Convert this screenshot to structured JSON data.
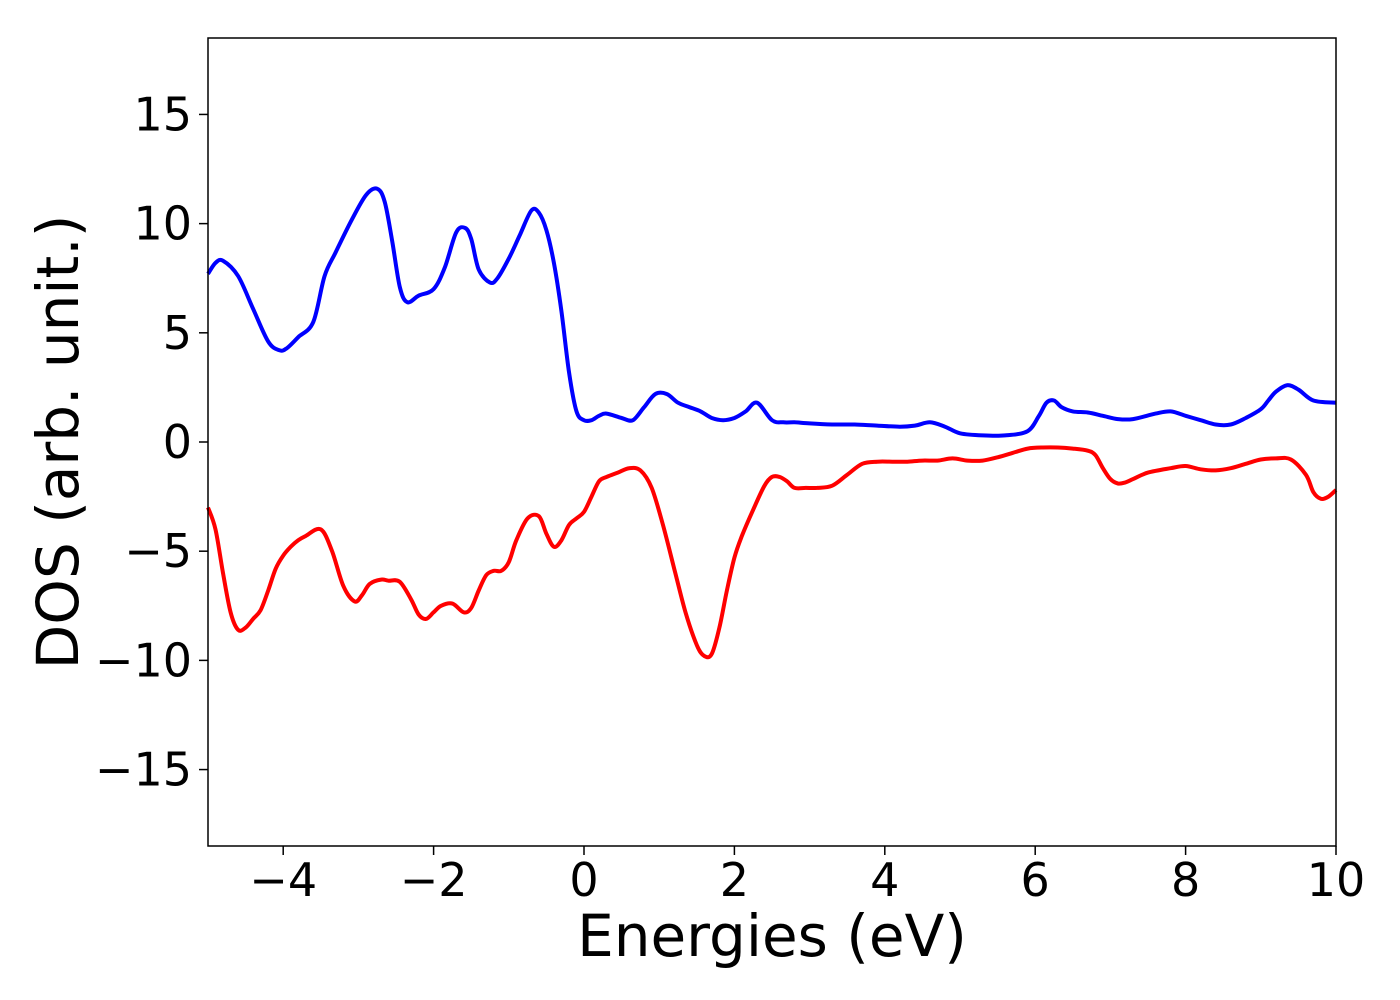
{
  "chart_data": {
    "type": "line",
    "title": "",
    "xlabel": "Energies (eV)",
    "ylabel": "DOS (arb. unit.)",
    "xlim": [
      -5,
      10
    ],
    "ylim": [
      -18.5,
      18.5
    ],
    "x_ticks": [
      -4,
      -2,
      0,
      2,
      4,
      6,
      8,
      10
    ],
    "x_tick_labels": [
      "−4",
      "−2",
      "0",
      "2",
      "4",
      "6",
      "8",
      "10"
    ],
    "y_ticks": [
      -15,
      -10,
      -5,
      0,
      5,
      10,
      15
    ],
    "y_tick_labels": [
      "−15",
      "−10",
      "−5",
      "0",
      "5",
      "10",
      "15"
    ],
    "grid": false,
    "legend": "none",
    "series": [
      {
        "color": "#0000ff",
        "x": [
          -5.0,
          -4.9,
          -4.8,
          -4.6,
          -4.4,
          -4.2,
          -4.05,
          -3.95,
          -3.8,
          -3.6,
          -3.45,
          -3.3,
          -3.1,
          -2.9,
          -2.75,
          -2.65,
          -2.55,
          -2.45,
          -2.35,
          -2.2,
          -2.0,
          -1.85,
          -1.7,
          -1.58,
          -1.5,
          -1.4,
          -1.25,
          -1.15,
          -1.0,
          -0.85,
          -0.7,
          -0.6,
          -0.5,
          -0.4,
          -0.3,
          -0.2,
          -0.1,
          0.0,
          0.1,
          0.2,
          0.3,
          0.5,
          0.65,
          0.8,
          0.95,
          1.1,
          1.25,
          1.4,
          1.55,
          1.7,
          1.85,
          2.0,
          2.15,
          2.3,
          2.5,
          2.65,
          2.8,
          3.0,
          3.3,
          3.6,
          3.9,
          4.2,
          4.4,
          4.6,
          4.8,
          5.0,
          5.3,
          5.6,
          5.9,
          6.05,
          6.15,
          6.25,
          6.35,
          6.5,
          6.7,
          6.9,
          7.1,
          7.3,
          7.6,
          7.8,
          8.0,
          8.2,
          8.4,
          8.6,
          8.8,
          9.0,
          9.1,
          9.2,
          9.35,
          9.5,
          9.7,
          10.0
        ],
        "y": [
          7.7,
          8.2,
          8.3,
          7.6,
          6.1,
          4.6,
          4.2,
          4.3,
          4.8,
          5.5,
          7.6,
          8.7,
          10.1,
          11.3,
          11.6,
          11.0,
          9.2,
          7.1,
          6.4,
          6.7,
          7.0,
          8.0,
          9.6,
          9.8,
          9.3,
          7.9,
          7.3,
          7.5,
          8.4,
          9.5,
          10.6,
          10.5,
          9.7,
          8.2,
          6.0,
          3.2,
          1.4,
          1.0,
          1.0,
          1.2,
          1.3,
          1.1,
          1.0,
          1.6,
          2.2,
          2.2,
          1.8,
          1.6,
          1.4,
          1.1,
          1.0,
          1.1,
          1.4,
          1.8,
          1.0,
          0.9,
          0.9,
          0.85,
          0.8,
          0.8,
          0.75,
          0.7,
          0.75,
          0.9,
          0.7,
          0.4,
          0.3,
          0.3,
          0.5,
          1.2,
          1.8,
          1.9,
          1.6,
          1.4,
          1.35,
          1.2,
          1.05,
          1.05,
          1.3,
          1.4,
          1.2,
          1.0,
          0.8,
          0.8,
          1.1,
          1.5,
          1.9,
          2.3,
          2.6,
          2.4,
          1.9,
          1.8
        ]
      },
      {
        "color": "#ff0000",
        "x": [
          -5.0,
          -4.9,
          -4.8,
          -4.7,
          -4.6,
          -4.5,
          -4.4,
          -4.3,
          -4.2,
          -4.1,
          -4.0,
          -3.9,
          -3.8,
          -3.7,
          -3.5,
          -3.35,
          -3.2,
          -3.05,
          -2.95,
          -2.85,
          -2.7,
          -2.6,
          -2.45,
          -2.3,
          -2.2,
          -2.1,
          -2.0,
          -1.9,
          -1.75,
          -1.6,
          -1.5,
          -1.4,
          -1.3,
          -1.2,
          -1.1,
          -1.0,
          -0.9,
          -0.75,
          -0.6,
          -0.5,
          -0.4,
          -0.3,
          -0.2,
          -0.1,
          0.0,
          0.1,
          0.2,
          0.3,
          0.45,
          0.6,
          0.75,
          0.9,
          1.05,
          1.2,
          1.35,
          1.5,
          1.6,
          1.7,
          1.8,
          1.9,
          2.0,
          2.1,
          2.25,
          2.4,
          2.5,
          2.6,
          2.7,
          2.8,
          2.95,
          3.1,
          3.3,
          3.5,
          3.7,
          3.9,
          4.1,
          4.3,
          4.5,
          4.7,
          4.9,
          5.1,
          5.3,
          5.5,
          5.7,
          5.9,
          6.1,
          6.3,
          6.5,
          6.7,
          6.8,
          6.9,
          7.0,
          7.1,
          7.2,
          7.3,
          7.5,
          7.8,
          8.0,
          8.2,
          8.4,
          8.6,
          8.8,
          9.0,
          9.2,
          9.4,
          9.6,
          9.7,
          9.8,
          9.9,
          10.0
        ],
        "y": [
          -3.0,
          -4.0,
          -6.0,
          -7.8,
          -8.6,
          -8.5,
          -8.1,
          -7.7,
          -6.8,
          -5.8,
          -5.2,
          -4.8,
          -4.5,
          -4.3,
          -4.0,
          -5.0,
          -6.6,
          -7.3,
          -7.0,
          -6.5,
          -6.3,
          -6.35,
          -6.4,
          -7.2,
          -7.9,
          -8.1,
          -7.8,
          -7.5,
          -7.4,
          -7.8,
          -7.6,
          -6.8,
          -6.1,
          -5.9,
          -5.9,
          -5.5,
          -4.5,
          -3.5,
          -3.4,
          -4.2,
          -4.8,
          -4.5,
          -3.8,
          -3.5,
          -3.2,
          -2.5,
          -1.8,
          -1.6,
          -1.4,
          -1.2,
          -1.3,
          -2.1,
          -3.8,
          -5.8,
          -7.8,
          -9.3,
          -9.8,
          -9.7,
          -8.5,
          -6.8,
          -5.3,
          -4.3,
          -3.1,
          -2.0,
          -1.6,
          -1.6,
          -1.8,
          -2.1,
          -2.1,
          -2.1,
          -2.0,
          -1.5,
          -1.0,
          -0.9,
          -0.9,
          -0.9,
          -0.85,
          -0.85,
          -0.75,
          -0.85,
          -0.85,
          -0.7,
          -0.5,
          -0.3,
          -0.25,
          -0.25,
          -0.3,
          -0.4,
          -0.6,
          -1.2,
          -1.7,
          -1.9,
          -1.85,
          -1.7,
          -1.4,
          -1.2,
          -1.1,
          -1.25,
          -1.3,
          -1.2,
          -1.0,
          -0.8,
          -0.75,
          -0.8,
          -1.5,
          -2.3,
          -2.6,
          -2.5,
          -2.2
        ]
      }
    ]
  }
}
